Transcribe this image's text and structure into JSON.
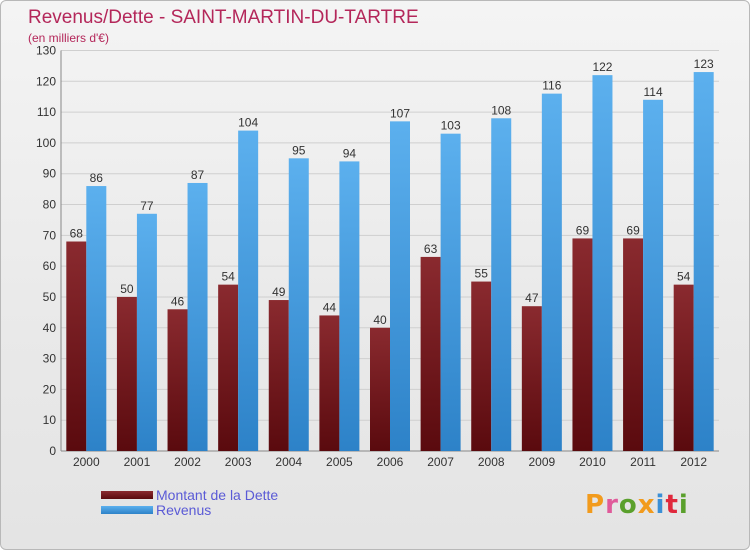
{
  "header": {
    "title": "Revenus/Dette - SAINT-MARTIN-DU-TARTRE",
    "subtitle": "(en milliers d'€)"
  },
  "colors": {
    "dette": "#7a1a1f",
    "revenus": "#4aa3e6",
    "title": "#b4275a",
    "legend_text": "#5a5ad6"
  },
  "chart_data": {
    "type": "bar",
    "categories": [
      "2000",
      "2001",
      "2002",
      "2003",
      "2004",
      "2005",
      "2006",
      "2007",
      "2008",
      "2009",
      "2010",
      "2011",
      "2012"
    ],
    "series": [
      {
        "name": "Montant de la Dette",
        "values": [
          68,
          50,
          46,
          54,
          49,
          44,
          40,
          63,
          55,
          47,
          69,
          69,
          54
        ]
      },
      {
        "name": "Revenus",
        "values": [
          86,
          77,
          87,
          104,
          95,
          94,
          107,
          103,
          108,
          116,
          122,
          114,
          123
        ]
      }
    ],
    "ylim": [
      0,
      130
    ],
    "yticks": [
      0,
      10,
      20,
      30,
      40,
      50,
      60,
      70,
      80,
      90,
      100,
      110,
      120,
      130
    ],
    "grid": true,
    "legend_position": "bottom-left"
  },
  "legend": {
    "items": [
      {
        "label": "Montant de la Dette"
      },
      {
        "label": "Revenus"
      }
    ]
  },
  "logo": {
    "text": "Proxiti"
  }
}
